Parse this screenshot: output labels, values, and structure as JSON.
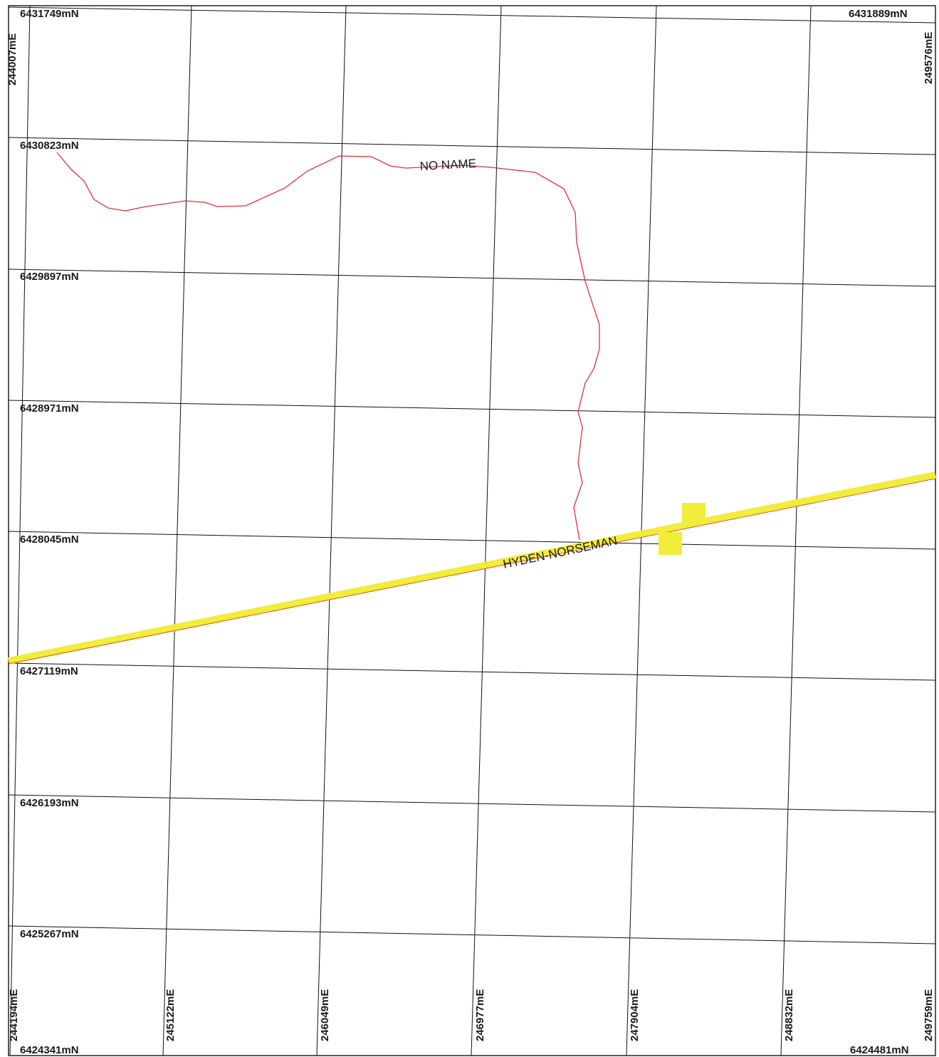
{
  "map": {
    "corner_labels": {
      "top_left_north": "6431749mN",
      "top_right_north": "6431889mN",
      "bottom_left_north": "6424341mN",
      "bottom_right_north": "6424481mN",
      "top_left_east": "244007mE",
      "top_right_east": "249576mE"
    },
    "northing_labels": [
      "6430823mN",
      "6429897mN",
      "6428971mN",
      "6428045mN",
      "6427119mN",
      "6426193mN",
      "6425267mN"
    ],
    "easting_labels": [
      "244194mE",
      "245122mE",
      "246049mE",
      "246977mE",
      "247904mE",
      "248832mE",
      "249759mE"
    ],
    "features": {
      "road_name": "HYDEN-NORSEMAN",
      "creek_name": "NO NAME",
      "road_color": "#f2ec3a",
      "creek_color": "#e0303a",
      "grid_color": "#111111"
    }
  }
}
